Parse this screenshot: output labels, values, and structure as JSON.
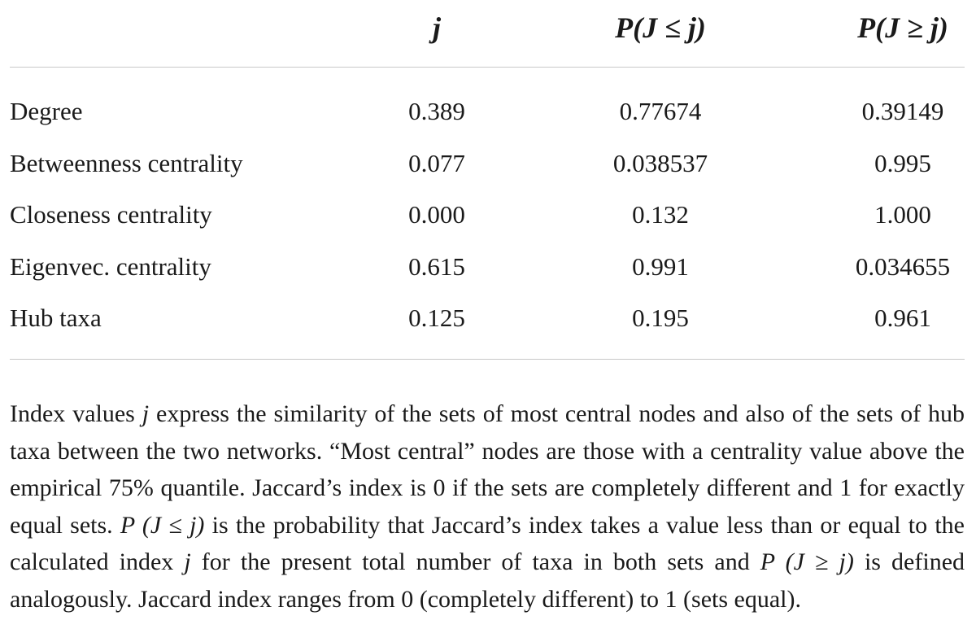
{
  "table": {
    "headers": [
      "j",
      "P(J ≤ j)",
      "P(J ≥ j)"
    ],
    "rows": [
      {
        "label": "Degree",
        "j": "0.389",
        "p_le": "0.77674",
        "p_ge": "0.39149"
      },
      {
        "label": "Betweenness centrality",
        "j": "0.077",
        "p_le": "0.038537",
        "p_ge": "0.995"
      },
      {
        "label": "Closeness centrality",
        "j": "0.000",
        "p_le": "0.132",
        "p_ge": "1.000"
      },
      {
        "label": "Eigenvec. centrality",
        "j": "0.615",
        "p_le": "0.991",
        "p_ge": "0.034655"
      },
      {
        "label": "Hub taxa",
        "j": "0.125",
        "p_le": "0.195",
        "p_ge": "0.961"
      }
    ]
  },
  "note": {
    "s1": "Index values ",
    "s2": "j",
    "s3": " express the similarity of the sets of most central nodes and also of the sets of hub taxa between the two networks. “Most central” nodes are those with a centrality value above the empirical 75% quantile. Jaccard’s index is 0 if the sets are completely different and 1 for exactly equal sets. ",
    "s4": "P (J ≤ j)",
    "s5": " is the probability that Jaccard’s index takes a value less than or equal to the calculated index ",
    "s6": "j",
    "s7": " for the present total number of taxa in both sets and ",
    "s8": "P (J ≥ j)",
    "s9": " is defined analogously. Jaccard index ranges from 0 (completely different) to 1 (sets equal)."
  }
}
